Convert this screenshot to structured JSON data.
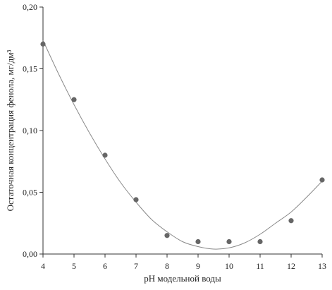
{
  "chart_data": {
    "type": "scatter",
    "title": "",
    "xlabel": "pH модельной воды",
    "ylabel": "Остаточная концентрация фенола, мг/дм³",
    "xlim": [
      4,
      13
    ],
    "ylim": [
      0,
      0.2
    ],
    "x_ticks": [
      4,
      5,
      6,
      7,
      8,
      9,
      10,
      11,
      12,
      13
    ],
    "x_tick_labels": [
      "4",
      "5",
      "6",
      "7",
      "8",
      "9",
      "10",
      "11",
      "12",
      "13"
    ],
    "y_ticks": [
      0,
      0.05,
      0.1,
      0.15,
      0.2
    ],
    "y_tick_labels": [
      "0,00",
      "0,05",
      "0,10",
      "0,15",
      "0,20"
    ],
    "grid": false,
    "legend": "none",
    "series": [
      {
        "x": [
          4,
          5,
          6,
          7,
          8,
          9,
          10,
          11,
          12,
          13
        ],
        "y": [
          0.17,
          0.125,
          0.08,
          0.044,
          0.015,
          0.01,
          0.01,
          0.01,
          0.027,
          0.06
        ],
        "marker_color": "#666666"
      }
    ],
    "trendline": {
      "type": "polynomial",
      "x": [
        4,
        4.5,
        5,
        5.5,
        6,
        6.5,
        7,
        7.5,
        8,
        8.5,
        9,
        9.5,
        10,
        10.5,
        11,
        11.5,
        12,
        12.5,
        13
      ],
      "y": [
        0.173,
        0.146,
        0.121,
        0.098,
        0.077,
        0.058,
        0.042,
        0.028,
        0.018,
        0.01,
        0.006,
        0.004,
        0.005,
        0.009,
        0.016,
        0.025,
        0.034,
        0.046,
        0.059
      ],
      "color": "#8a8a8a"
    }
  }
}
